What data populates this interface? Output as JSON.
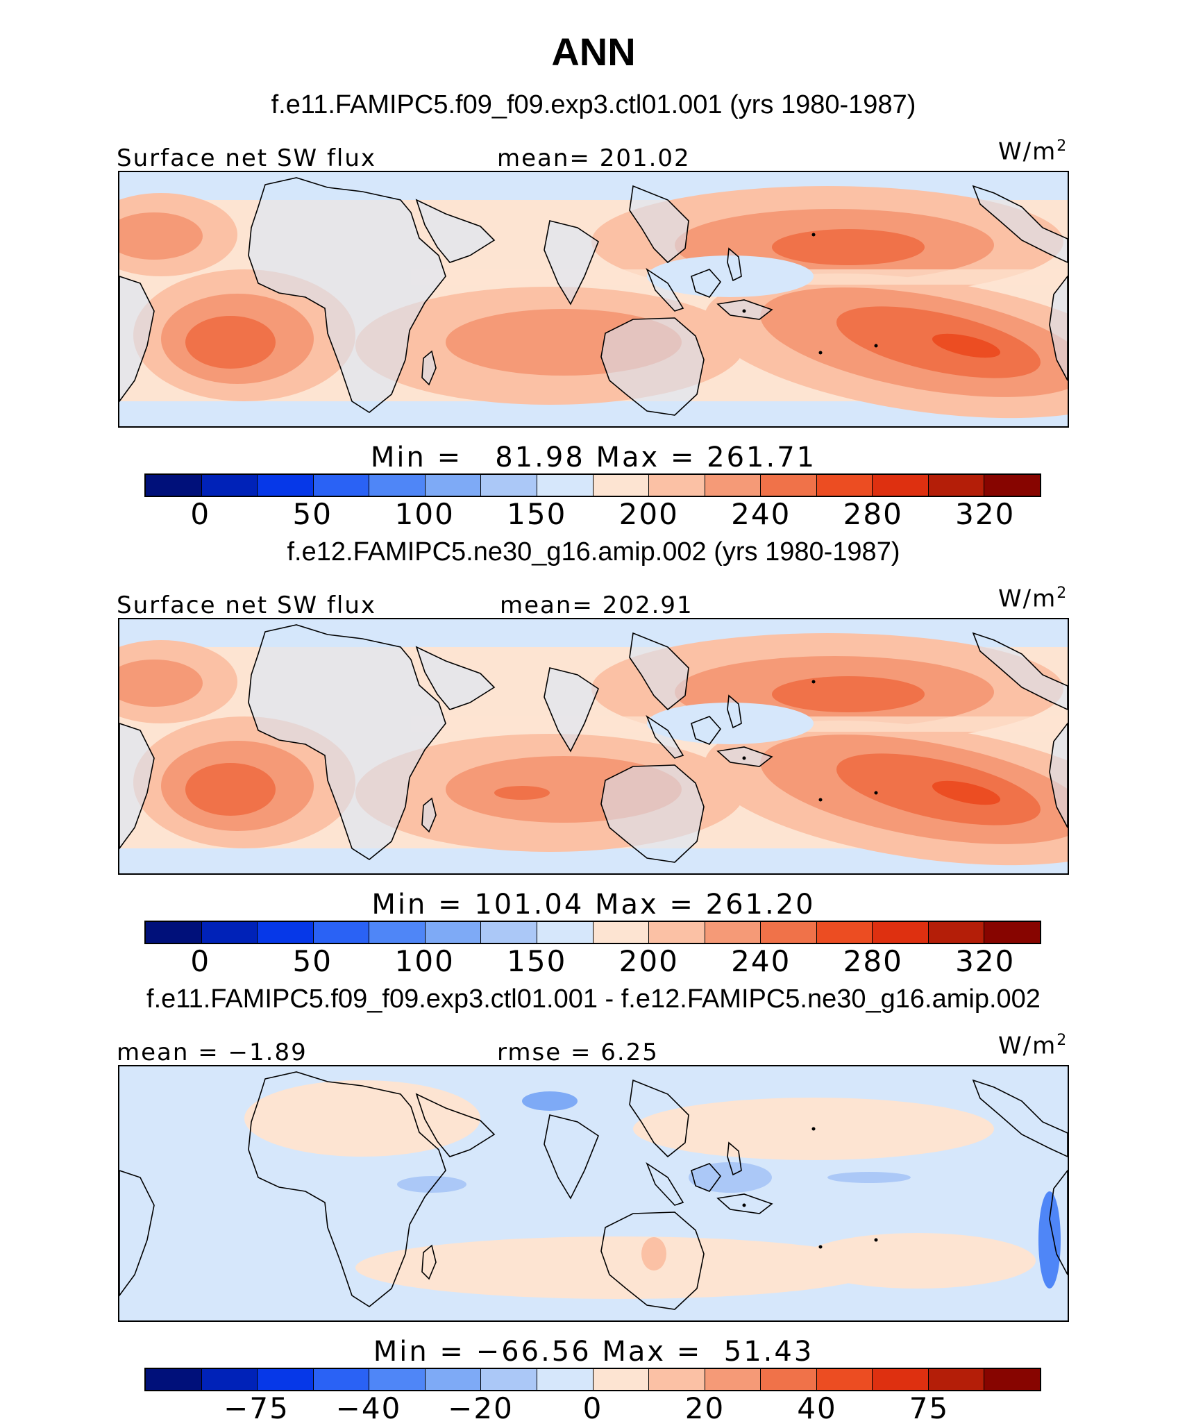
{
  "title": "ANN",
  "units": "W/m",
  "units_sup": "2",
  "palette": [
    "#00107a",
    "#0022b8",
    "#0638e8",
    "#2a62f5",
    "#4f86f7",
    "#7eaaf6",
    "#abc8f7",
    "#d6e7fb",
    "#fde4d2",
    "#fbc1a5",
    "#f59a77",
    "#f07249",
    "#ec4d22",
    "#de3010",
    "#b41e08",
    "#870500"
  ],
  "coastline_color": "#000000",
  "panels": [
    {
      "case": "f.e11.FAMIPC5.f09_f09.exp3.ctl01.001 (yrs 1980-1987)",
      "left_label": "Surface net SW flux",
      "center_label": "mean= 201.02",
      "minmax": "Min =   81.98 Max = 261.71",
      "cbar_ticks": [
        "0",
        "50",
        "100",
        "150",
        "200",
        "240",
        "280",
        "320"
      ]
    },
    {
      "case": "f.e12.FAMIPC5.ne30_g16.amip.002 (yrs 1980-1987)",
      "left_label": "Surface net SW flux",
      "center_label": "mean= 202.91",
      "minmax": "Min = 101.04 Max = 261.20",
      "cbar_ticks": [
        "0",
        "50",
        "100",
        "150",
        "200",
        "240",
        "280",
        "320"
      ]
    },
    {
      "case": "f.e11.FAMIPC5.f09_f09.exp3.ctl01.001 - f.e12.FAMIPC5.ne30_g16.amip.002",
      "left_label": "mean =  −1.89",
      "center_label": "rmse =   6.25",
      "minmax": "Min = −66.56 Max =  51.43",
      "cbar_ticks": [
        "−75",
        "−40",
        "−20",
        "0",
        "20",
        "40",
        "75"
      ]
    }
  ],
  "chart_data": [
    {
      "type": "heatmap",
      "title": "ANN",
      "subtitle": "f.e11.FAMIPC5.f09_f09.exp3.ctl01.001 (yrs 1980-1987)",
      "variable": "Surface net SW flux",
      "units": "W/m2",
      "mean": 201.02,
      "min": 81.98,
      "max": 261.71,
      "colorbar_levels": [
        0,
        25,
        50,
        75,
        100,
        125,
        150,
        175,
        200,
        220,
        240,
        260,
        280,
        300,
        320
      ],
      "colorbar_labels": [
        0,
        50,
        100,
        150,
        200,
        240,
        280,
        320
      ],
      "domain": "tropical band, Atlantic to eastern Pacific"
    },
    {
      "type": "heatmap",
      "subtitle": "f.e12.FAMIPC5.ne30_g16.amip.002 (yrs 1980-1987)",
      "variable": "Surface net SW flux",
      "units": "W/m2",
      "mean": 202.91,
      "min": 101.04,
      "max": 261.2,
      "colorbar_levels": [
        0,
        25,
        50,
        75,
        100,
        125,
        150,
        175,
        200,
        220,
        240,
        260,
        280,
        300,
        320
      ],
      "colorbar_labels": [
        0,
        50,
        100,
        150,
        200,
        240,
        280,
        320
      ],
      "domain": "tropical band, Atlantic to eastern Pacific"
    },
    {
      "type": "heatmap",
      "subtitle": "f.e11.FAMIPC5.f09_f09.exp3.ctl01.001 - f.e12.FAMIPC5.ne30_g16.amip.002",
      "units": "W/m2",
      "mean": -1.89,
      "rmse": 6.25,
      "min": -66.56,
      "max": 51.43,
      "colorbar_levels": [
        -100,
        -75,
        -60,
        -40,
        -30,
        -20,
        -10,
        0,
        10,
        20,
        30,
        40,
        60,
        75,
        100
      ],
      "colorbar_labels": [
        -75,
        -40,
        -20,
        0,
        20,
        40,
        75
      ],
      "domain": "tropical band, Atlantic to eastern Pacific"
    }
  ]
}
